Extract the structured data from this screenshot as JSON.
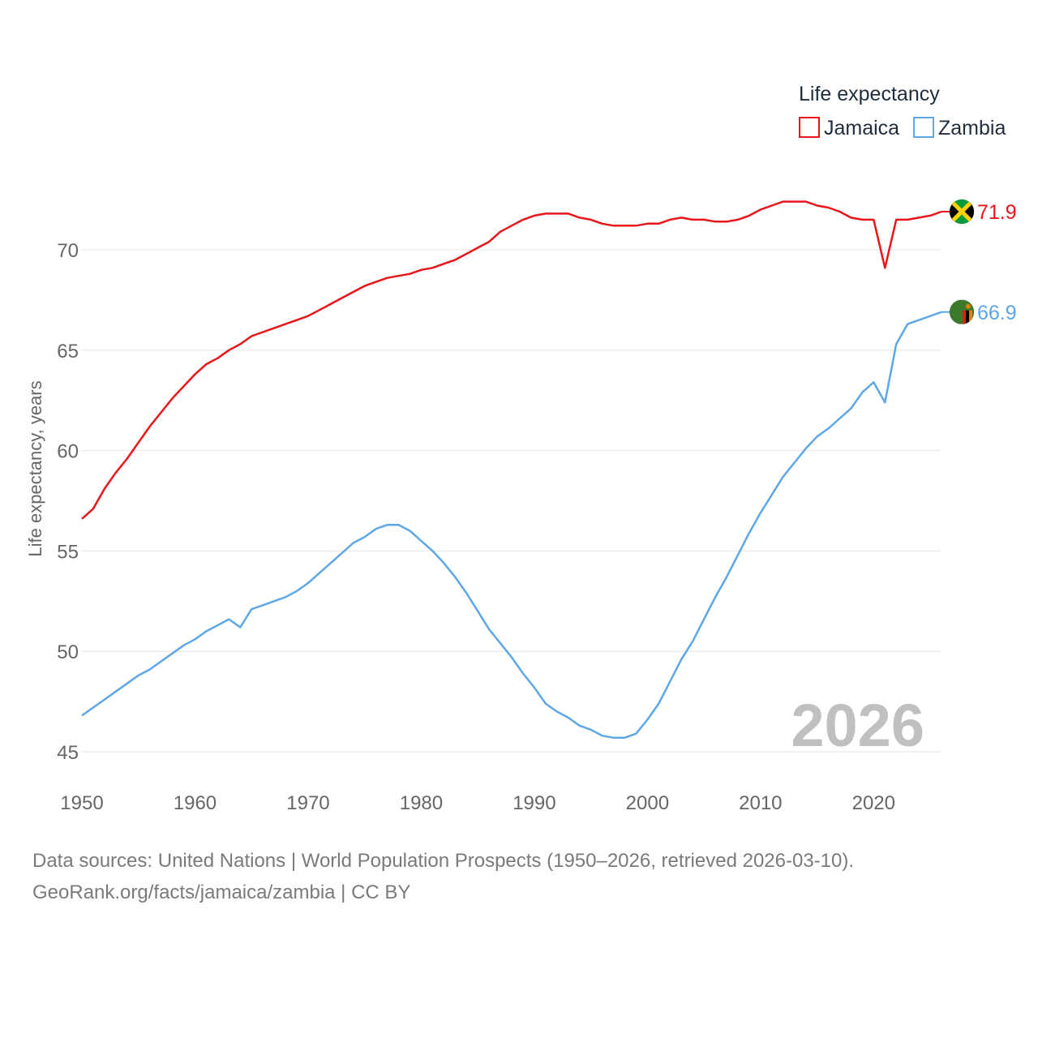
{
  "chart_data": {
    "type": "line",
    "title": "",
    "xlabel": "",
    "ylabel": "Life expectancy, years",
    "xlim": [
      1950,
      2026
    ],
    "ylim": [
      44.5,
      73
    ],
    "y_ticks": [
      45,
      50,
      55,
      60,
      65,
      70
    ],
    "x_ticks": [
      1950,
      1960,
      1970,
      1980,
      1990,
      2000,
      2010,
      2020
    ],
    "grid": true,
    "legend": {
      "title": "Life expectancy",
      "position": "top-right"
    },
    "current_year": "2026",
    "x": [
      1950,
      1951,
      1952,
      1953,
      1954,
      1955,
      1956,
      1957,
      1958,
      1959,
      1960,
      1961,
      1962,
      1963,
      1964,
      1965,
      1966,
      1967,
      1968,
      1969,
      1970,
      1971,
      1972,
      1973,
      1974,
      1975,
      1976,
      1977,
      1978,
      1979,
      1980,
      1981,
      1982,
      1983,
      1984,
      1985,
      1986,
      1987,
      1988,
      1989,
      1990,
      1991,
      1992,
      1993,
      1994,
      1995,
      1996,
      1997,
      1998,
      1999,
      2000,
      2001,
      2002,
      2003,
      2004,
      2005,
      2006,
      2007,
      2008,
      2009,
      2010,
      2011,
      2012,
      2013,
      2014,
      2015,
      2016,
      2017,
      2018,
      2019,
      2020,
      2021,
      2022,
      2023,
      2024,
      2025,
      2026
    ],
    "series": [
      {
        "name": "Jamaica",
        "color": "#e8151b",
        "end_label": "71.9",
        "flag": "jamaica-flag-icon",
        "values": [
          56.6,
          57.1,
          58.1,
          58.9,
          59.6,
          60.4,
          61.2,
          61.9,
          62.6,
          63.2,
          63.8,
          64.3,
          64.6,
          65.0,
          65.3,
          65.7,
          65.9,
          66.1,
          66.3,
          66.5,
          66.7,
          67.0,
          67.3,
          67.6,
          67.9,
          68.2,
          68.4,
          68.6,
          68.7,
          68.8,
          69.0,
          69.1,
          69.3,
          69.5,
          69.8,
          70.1,
          70.4,
          70.9,
          71.2,
          71.5,
          71.7,
          71.8,
          71.8,
          71.8,
          71.6,
          71.5,
          71.3,
          71.2,
          71.2,
          71.2,
          71.3,
          71.3,
          71.5,
          71.6,
          71.5,
          71.5,
          71.4,
          71.4,
          71.5,
          71.7,
          72.0,
          72.2,
          72.4,
          72.4,
          72.4,
          72.2,
          72.1,
          71.9,
          71.6,
          71.5,
          71.5,
          69.1,
          71.5,
          71.5,
          71.6,
          71.7,
          71.9
        ]
      },
      {
        "name": "Zambia",
        "color": "#5ea7e6",
        "end_label": "66.9",
        "flag": "zambia-flag-icon",
        "values": [
          46.8,
          47.2,
          47.6,
          48.0,
          48.4,
          48.8,
          49.1,
          49.5,
          49.9,
          50.3,
          50.6,
          51.0,
          51.3,
          51.6,
          51.2,
          52.1,
          52.3,
          52.5,
          52.7,
          53.0,
          53.4,
          53.9,
          54.4,
          54.9,
          55.4,
          55.7,
          56.1,
          56.3,
          56.3,
          56.0,
          55.5,
          55.0,
          54.4,
          53.7,
          52.9,
          52.0,
          51.1,
          50.4,
          49.7,
          48.9,
          48.2,
          47.4,
          47.0,
          46.7,
          46.3,
          46.1,
          45.8,
          45.7,
          45.7,
          45.9,
          46.6,
          47.4,
          48.5,
          49.6,
          50.5,
          51.6,
          52.7,
          53.7,
          54.8,
          55.9,
          56.9,
          57.8,
          58.7,
          59.4,
          60.1,
          60.7,
          61.1,
          61.6,
          62.1,
          62.9,
          63.4,
          62.4,
          65.3,
          66.3,
          66.5,
          66.7,
          66.9
        ]
      }
    ]
  },
  "source": {
    "line1": "Data sources: United Nations | World Population Prospects (1950–2026, retrieved 2026-03-10).",
    "line2": "GeoRank.org/facts/jamaica/zambia | CC BY"
  }
}
